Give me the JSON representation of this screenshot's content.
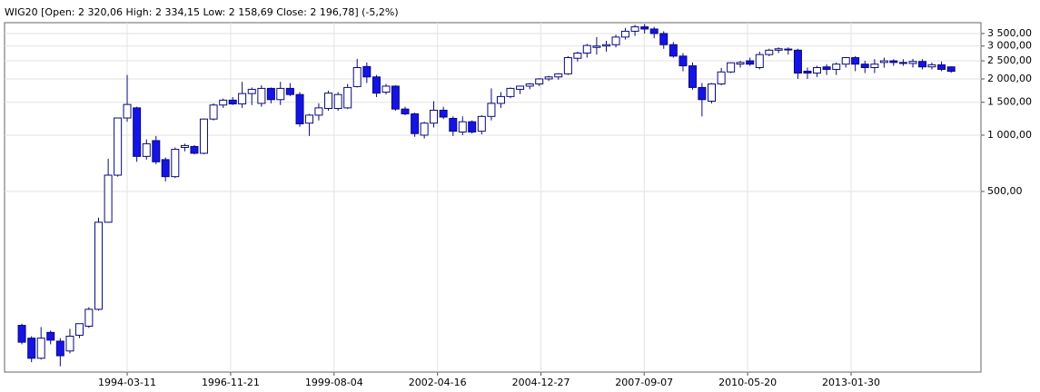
{
  "chart_data": {
    "type": "candlestick",
    "title": "WIG20 [Open: 2 320,06  High: 2 334,15  Low: 2 158,69  Close: 2 196,78] (-5,2%)",
    "log_scale": true,
    "grid": true,
    "up_color": "#ffffff",
    "down_color": "#1414e6",
    "edge_color": "#0a0a78",
    "xlim": [
      "1990-12-28",
      "2016-06-21"
    ],
    "xticks": [
      "1994-03-11",
      "1996-11-21",
      "1999-08-04",
      "2002-04-16",
      "2004-12-27",
      "2007-09-07",
      "2010-05-20",
      "2013-01-30"
    ],
    "ylim": [
      54,
      4000
    ],
    "yticks": [
      {
        "value": 500,
        "label": "500,00"
      },
      {
        "value": 1000,
        "label": "1 000,00"
      },
      {
        "value": 1500,
        "label": "1 500,00"
      },
      {
        "value": 2000,
        "label": "2 000,00"
      },
      {
        "value": 2500,
        "label": "2 500,00"
      },
      {
        "value": 3000,
        "label": "3 000,00"
      },
      {
        "value": 3500,
        "label": "3 500,00"
      }
    ],
    "x": [
      "1991-06-11",
      "1991-09-11",
      "1991-12-11",
      "1992-03-11",
      "1992-06-11",
      "1992-09-11",
      "1992-12-11",
      "1993-03-11",
      "1993-06-11",
      "1993-09-11",
      "1993-12-11",
      "1994-03-11",
      "1994-06-11",
      "1994-09-11",
      "1994-12-11",
      "1995-03-11",
      "1995-06-11",
      "1995-09-11",
      "1995-12-11",
      "1996-03-11",
      "1996-06-11",
      "1996-09-11",
      "1996-12-11",
      "1997-03-11",
      "1997-06-11",
      "1997-09-11",
      "1997-12-11",
      "1998-03-11",
      "1998-06-11",
      "1998-09-11",
      "1998-12-11",
      "1999-03-11",
      "1999-06-11",
      "1999-09-11",
      "1999-12-11",
      "2000-03-11",
      "2000-06-11",
      "2000-09-11",
      "2000-12-11",
      "2001-03-11",
      "2001-06-11",
      "2001-09-11",
      "2001-12-11",
      "2002-03-11",
      "2002-06-11",
      "2002-09-11",
      "2002-12-11",
      "2003-03-11",
      "2003-06-11",
      "2003-09-11",
      "2003-12-11",
      "2004-03-11",
      "2004-06-11",
      "2004-09-11",
      "2004-12-11",
      "2005-03-11",
      "2005-06-11",
      "2005-09-11",
      "2005-12-11",
      "2006-03-11",
      "2006-06-11",
      "2006-09-11",
      "2006-12-11",
      "2007-03-11",
      "2007-06-11",
      "2007-09-11",
      "2007-12-11",
      "2008-03-11",
      "2008-06-11",
      "2008-09-11",
      "2008-12-11",
      "2009-03-11",
      "2009-06-11",
      "2009-09-11",
      "2009-12-11",
      "2010-03-11",
      "2010-06-11",
      "2010-09-11",
      "2010-12-11",
      "2011-03-11",
      "2011-06-11",
      "2011-09-11",
      "2011-12-11",
      "2012-03-11",
      "2012-06-11",
      "2012-09-11",
      "2012-12-11",
      "2013-03-11",
      "2013-06-11",
      "2013-09-11",
      "2013-12-11",
      "2014-03-11",
      "2014-06-11",
      "2014-09-11",
      "2014-12-11",
      "2015-03-11",
      "2015-06-11",
      "2015-09-11"
    ],
    "open": [
      96,
      82,
      64,
      88,
      79,
      70,
      85,
      95,
      117,
      342,
      611,
      1236,
      1400,
      770,
      935,
      740,
      600,
      860,
      870,
      800,
      1220,
      1450,
      1540,
      1470,
      1670,
      1480,
      1780,
      1550,
      1780,
      1650,
      1160,
      1280,
      1390,
      1390,
      1400,
      1820,
      2330,
      2050,
      1700,
      1830,
      1380,
      1300,
      1000,
      1160,
      1360,
      1230,
      1040,
      1180,
      1050,
      1260,
      1480,
      1610,
      1760,
      1830,
      1880,
      2000,
      2050,
      2130,
      2580,
      2750,
      2950,
      3000,
      3050,
      3350,
      3600,
      3800,
      3700,
      3500,
      3050,
      2650,
      2350,
      1800,
      1520,
      1880,
      2180,
      2400,
      2500,
      2300,
      2700,
      2850,
      2880,
      2850,
      2200,
      2150,
      2320,
      2250,
      2400,
      2600,
      2400,
      2300,
      2450,
      2500,
      2450,
      2420,
      2480,
      2320,
      2380,
      2320.06
    ],
    "high": [
      98,
      84,
      94,
      90,
      82,
      92,
      98,
      120,
      362,
      748,
      1240,
      2100,
      1420,
      950,
      990,
      760,
      860,
      900,
      885,
      1230,
      1480,
      1570,
      1600,
      1930,
      1800,
      1850,
      1800,
      1930,
      1900,
      1700,
      1300,
      1480,
      1730,
      1700,
      1880,
      2560,
      2450,
      2100,
      1880,
      1850,
      1420,
      1320,
      1180,
      1520,
      1420,
      1260,
      1260,
      1200,
      1280,
      1780,
      1700,
      1800,
      1830,
      1900,
      2020,
      2080,
      2150,
      2650,
      2800,
      3080,
      3350,
      3200,
      3450,
      3750,
      3900,
      3940,
      3800,
      3600,
      3150,
      2750,
      2450,
      1900,
      1900,
      2290,
      2460,
      2500,
      2600,
      2800,
      2900,
      2950,
      2950,
      2900,
      2300,
      2350,
      2400,
      2450,
      2620,
      2650,
      2500,
      2550,
      2600,
      2550,
      2550,
      2560,
      2550,
      2450,
      2480,
      2334.15
    ],
    "low": [
      76,
      61,
      63,
      76,
      58,
      68,
      82,
      93,
      115,
      340,
      600,
      1180,
      720,
      740,
      700,
      566,
      590,
      820,
      790,
      790,
      1200,
      1400,
      1450,
      1400,
      1450,
      1420,
      1480,
      1450,
      1620,
      1110,
      990,
      1200,
      1350,
      1350,
      1380,
      1800,
      1900,
      1600,
      1650,
      1350,
      1280,
      980,
      960,
      1100,
      1220,
      990,
      1000,
      1020,
      1010,
      1200,
      1400,
      1580,
      1660,
      1760,
      1830,
      1950,
      1980,
      2100,
      2480,
      2600,
      2700,
      2800,
      2950,
      3250,
      3400,
      3500,
      3300,
      2900,
      2600,
      2200,
      1750,
      1260,
      1480,
      1850,
      2150,
      2300,
      2350,
      2250,
      2650,
      2750,
      2700,
      2000,
      2000,
      2050,
      2100,
      2100,
      2300,
      2200,
      2150,
      2150,
      2300,
      2350,
      2350,
      2300,
      2250,
      2250,
      2200,
      2158.69
    ],
    "close": [
      78,
      64,
      82,
      80,
      66,
      84,
      98,
      117,
      342,
      611,
      1236,
      1460,
      770,
      900,
      720,
      600,
      840,
      880,
      800,
      1220,
      1450,
      1540,
      1470,
      1670,
      1760,
      1780,
      1550,
      1780,
      1650,
      1150,
      1280,
      1400,
      1680,
      1650,
      1800,
      2300,
      2050,
      1680,
      1830,
      1380,
      1300,
      1020,
      1160,
      1360,
      1250,
      1050,
      1180,
      1040,
      1260,
      1480,
      1610,
      1780,
      1830,
      1880,
      2000,
      2050,
      2130,
      2600,
      2750,
      3020,
      3000,
      3050,
      3350,
      3600,
      3800,
      3700,
      3500,
      3050,
      2650,
      2350,
      1800,
      1550,
      1880,
      2180,
      2440,
      2450,
      2400,
      2700,
      2850,
      2900,
      2890,
      2150,
      2150,
      2300,
      2250,
      2400,
      2600,
      2400,
      2300,
      2400,
      2500,
      2450,
      2420,
      2480,
      2320,
      2380,
      2250,
      2196.78
    ]
  }
}
